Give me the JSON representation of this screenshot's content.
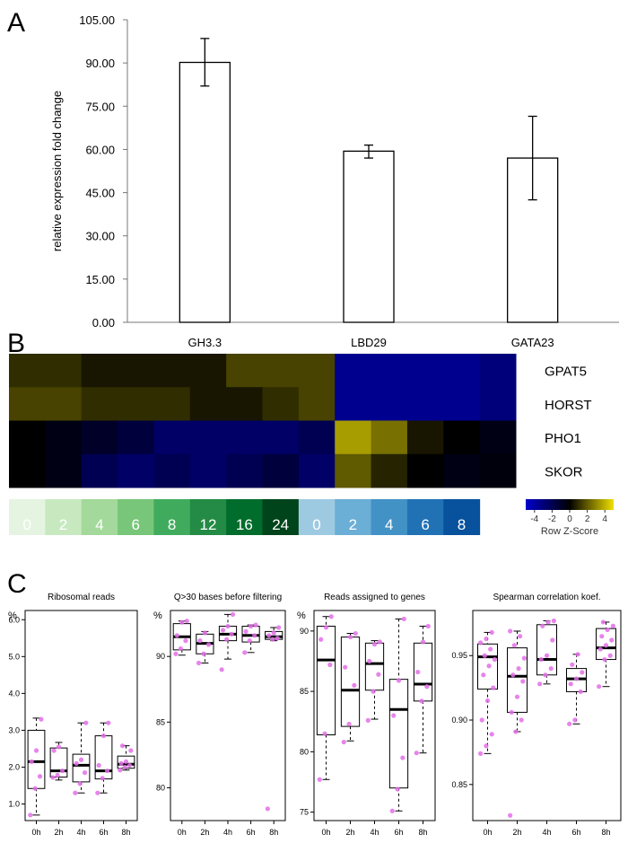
{
  "panels": {
    "a": {
      "letter": "A"
    },
    "b": {
      "letter": "B"
    },
    "c": {
      "letter": "C"
    }
  },
  "chart_data": [
    {
      "id": "A",
      "type": "bar",
      "ylabel": "relative expression fold change",
      "ylim": [
        0,
        105
      ],
      "yticks": [
        0,
        15,
        30,
        45,
        60,
        75,
        90,
        105
      ],
      "ytick_labels": [
        "0.00",
        "15.00",
        "30.00",
        "45.00",
        "60.00",
        "75.00",
        "90.00",
        "105.00"
      ],
      "categories": [
        "GH3.3",
        "LBD29",
        "GATA23"
      ],
      "values": [
        90.2,
        59.4,
        57.0
      ],
      "error_low": [
        82.0,
        57.0,
        42.5
      ],
      "error_high": [
        98.5,
        61.5,
        71.5
      ],
      "bar_color": "#ffffff"
    },
    {
      "id": "B",
      "type": "heatmap",
      "rows": [
        "GPAT5",
        "HORST",
        "PHO1",
        "SKOR"
      ],
      "col_groups": [
        {
          "labels": [
            "0",
            "2",
            "4",
            "6",
            "8",
            "12",
            "16",
            "24"
          ],
          "colors": [
            "#e5f4e1",
            "#c8e9c0",
            "#a3d99a",
            "#78c679",
            "#41ab5d",
            "#238b45",
            "#006d2c",
            "#00441b"
          ]
        },
        {
          "labels": [
            "0",
            "2",
            "4",
            "6",
            "8"
          ],
          "colors": [
            "#9ecae1",
            "#6baed6",
            "#4292c6",
            "#2171b5",
            "#08519c"
          ]
        }
      ],
      "z_values": [
        [
          1.0,
          1.0,
          0.5,
          0.5,
          0.5,
          0.5,
          1.5,
          1.5,
          1.5,
          -3.5,
          -3.5,
          -3.5,
          -3.5,
          -3.0
        ],
        [
          1.5,
          1.5,
          1.0,
          1.0,
          1.0,
          0.5,
          0.5,
          1.0,
          1.5,
          -3.5,
          -3.5,
          -3.5,
          -3.5,
          -3.0
        ],
        [
          0,
          -0.5,
          -1.0,
          -1.5,
          -2.5,
          -2.5,
          -2.5,
          -2.5,
          -2.0,
          3.5,
          2.5,
          0.5,
          0,
          -0.5
        ],
        [
          0,
          -0.5,
          -2.0,
          -2.5,
          -2.0,
          -2.5,
          -2.0,
          -1.5,
          -2.5,
          2.0,
          0.8,
          0,
          -0.5,
          -0.3
        ]
      ],
      "colorscale": [
        "#0000cc",
        "#000000",
        "#f0e000"
      ],
      "legend": {
        "title": "Row Z-Score",
        "ticks": [
          "-4",
          "-2",
          "0",
          "2",
          "4"
        ],
        "range": [
          -5,
          5
        ]
      }
    },
    {
      "id": "C1",
      "type": "box",
      "title": "Ribosomal reads",
      "unit": "%",
      "ylim": [
        0.55,
        6.25
      ],
      "yticks": [
        1.0,
        2.0,
        3.0,
        4.0,
        5.0,
        6.0
      ],
      "ytick_labels": [
        "1.0",
        "2.0",
        "3.0",
        "4.0",
        "5.0",
        "6.0"
      ],
      "categories": [
        "0h",
        "2h",
        "4h",
        "6h",
        "8h"
      ],
      "boxes": [
        {
          "low": 0.7,
          "q1": 1.42,
          "median": 2.15,
          "q3": 3.0,
          "high": 3.33
        },
        {
          "low": 1.65,
          "q1": 1.73,
          "median": 1.9,
          "q3": 2.52,
          "high": 2.67
        },
        {
          "low": 1.3,
          "q1": 1.6,
          "median": 2.05,
          "q3": 2.35,
          "high": 3.2
        },
        {
          "low": 1.3,
          "q1": 1.68,
          "median": 1.9,
          "q3": 2.85,
          "high": 3.2
        },
        {
          "low": 1.92,
          "q1": 1.97,
          "median": 2.08,
          "q3": 2.3,
          "high": 2.58
        }
      ],
      "points": [
        [
          0.7,
          1.42,
          1.75,
          2.15,
          2.45,
          3.3
        ],
        [
          1.72,
          1.78,
          1.9,
          2.45,
          2.55
        ],
        [
          1.3,
          1.55,
          1.85,
          2.1,
          2.2,
          3.2
        ],
        [
          1.3,
          1.7,
          1.9,
          2.05,
          2.85,
          3.2
        ],
        [
          1.92,
          2.0,
          2.05,
          2.1,
          2.15,
          2.45,
          2.58
        ]
      ]
    },
    {
      "id": "C2",
      "type": "box",
      "title": "Q>30 bases before filtering",
      "unit": "%",
      "ylim": [
        77.5,
        93.5
      ],
      "yticks": [
        80,
        85,
        90
      ],
      "ytick_labels": [
        "80",
        "85",
        "90"
      ],
      "categories": [
        "0h",
        "2h",
        "4h",
        "6h",
        "8h"
      ],
      "boxes": [
        {
          "low": 90.1,
          "q1": 90.5,
          "median": 91.5,
          "q3": 92.5,
          "high": 92.7
        },
        {
          "low": 89.5,
          "q1": 90.2,
          "median": 91.0,
          "q3": 91.7,
          "high": 91.9
        },
        {
          "low": 89.8,
          "q1": 91.2,
          "median": 91.7,
          "q3": 92.3,
          "high": 93.2
        },
        {
          "low": 90.3,
          "q1": 91.1,
          "median": 91.6,
          "q3": 92.3,
          "high": 92.4
        },
        {
          "low": 91.2,
          "q1": 91.3,
          "median": 91.5,
          "q3": 91.9,
          "high": 92.2
        }
      ],
      "points": [
        [
          90.2,
          90.6,
          91.2,
          91.6,
          92.6,
          92.7
        ],
        [
          89.5,
          90.2,
          90.9,
          91.2,
          91.8
        ],
        [
          89.0,
          91.3,
          91.7,
          92.0,
          92.3,
          93.2
        ],
        [
          90.3,
          91.2,
          91.6,
          91.9,
          92.3,
          92.4
        ],
        [
          78.4,
          91.3,
          91.4,
          91.6,
          91.8,
          92.2
        ]
      ]
    },
    {
      "id": "C3",
      "type": "box",
      "title": "Reads assigned to genes",
      "unit": "%",
      "ylim": [
        74.3,
        91.7
      ],
      "yticks": [
        75,
        80,
        85,
        90
      ],
      "ytick_labels": [
        "75",
        "80",
        "85",
        "90"
      ],
      "categories": [
        "0h",
        "2h",
        "4h",
        "6h",
        "8h"
      ],
      "boxes": [
        {
          "low": 77.7,
          "q1": 81.4,
          "median": 87.6,
          "q3": 90.4,
          "high": 91.2
        },
        {
          "low": 80.9,
          "q1": 82.1,
          "median": 85.1,
          "q3": 89.5,
          "high": 89.8
        },
        {
          "low": 82.7,
          "q1": 85.1,
          "median": 87.3,
          "q3": 89.0,
          "high": 89.2
        },
        {
          "low": 75.1,
          "q1": 77.0,
          "median": 83.5,
          "q3": 86.0,
          "high": 91.0
        },
        {
          "low": 79.9,
          "q1": 84.2,
          "median": 85.6,
          "q3": 89.0,
          "high": 90.4
        }
      ],
      "points": [
        [
          77.7,
          81.5,
          87.2,
          89.3,
          90.3,
          91.2
        ],
        [
          80.8,
          82.3,
          85.5,
          87.0,
          89.5,
          89.8
        ],
        [
          82.6,
          85.0,
          86.4,
          87.5,
          88.9,
          89.1
        ],
        [
          75.1,
          76.9,
          79.5,
          83.0,
          85.9,
          91.0
        ],
        [
          79.9,
          84.2,
          85.4,
          86.6,
          89.1,
          90.4
        ]
      ]
    },
    {
      "id": "C4",
      "type": "box",
      "title": "Spearman correlation koef.",
      "unit": "",
      "ylim": [
        0.822,
        0.985
      ],
      "yticks": [
        0.85,
        0.9,
        0.95
      ],
      "ytick_labels": [
        "0.85",
        "0.90",
        "0.95"
      ],
      "categories": [
        "0h",
        "2h",
        "4h",
        "6h",
        "8h"
      ],
      "boxes": [
        {
          "low": 0.874,
          "q1": 0.924,
          "median": 0.949,
          "q3": 0.959,
          "high": 0.968
        },
        {
          "low": 0.891,
          "q1": 0.906,
          "median": 0.934,
          "q3": 0.956,
          "high": 0.969
        },
        {
          "low": 0.928,
          "q1": 0.935,
          "median": 0.947,
          "q3": 0.974,
          "high": 0.977
        },
        {
          "low": 0.897,
          "q1": 0.922,
          "median": 0.932,
          "q3": 0.94,
          "high": 0.951
        },
        {
          "low": 0.926,
          "q1": 0.947,
          "median": 0.956,
          "q3": 0.971,
          "high": 0.976
        }
      ],
      "points": [
        [
          0.874,
          0.88,
          0.889,
          0.9,
          0.915,
          0.925,
          0.935,
          0.942,
          0.947,
          0.95,
          0.955,
          0.96,
          0.963,
          0.968
        ],
        [
          0.826,
          0.891,
          0.9,
          0.906,
          0.918,
          0.93,
          0.935,
          0.94,
          0.948,
          0.958,
          0.965,
          0.969
        ],
        [
          0.928,
          0.935,
          0.94,
          0.947,
          0.95,
          0.962,
          0.973,
          0.976,
          0.977
        ],
        [
          0.897,
          0.9,
          0.922,
          0.928,
          0.932,
          0.937,
          0.943,
          0.951
        ],
        [
          0.926,
          0.947,
          0.95,
          0.955,
          0.958,
          0.962,
          0.965,
          0.97,
          0.973,
          0.976
        ]
      ]
    }
  ]
}
